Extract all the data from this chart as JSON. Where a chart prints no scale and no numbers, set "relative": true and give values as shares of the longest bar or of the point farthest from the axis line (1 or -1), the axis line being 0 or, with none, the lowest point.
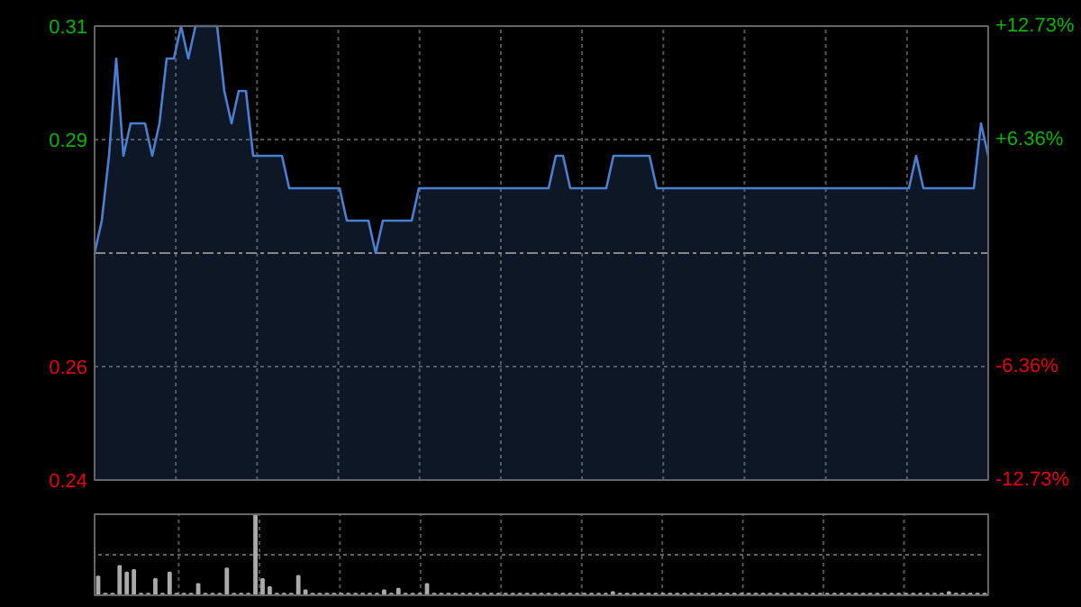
{
  "chart_data": [
    {
      "type": "area",
      "categories": [
        null,
        null,
        null,
        null,
        null,
        null,
        null,
        null,
        null,
        null,
        null,
        null,
        null,
        null,
        null,
        null,
        null,
        null,
        null,
        null,
        null,
        null,
        null,
        null,
        null,
        null,
        null,
        null,
        null,
        null,
        null,
        null,
        null,
        null,
        null,
        null,
        null,
        null,
        null,
        null,
        null,
        null,
        null,
        null,
        null,
        null,
        null,
        null,
        null,
        null,
        null,
        null,
        null,
        null,
        null,
        null,
        null,
        null,
        null,
        null,
        null,
        null,
        null,
        null,
        null,
        null,
        null,
        null,
        null,
        null,
        null,
        null,
        null,
        null,
        null,
        null,
        null,
        null,
        null,
        null,
        null,
        null,
        null,
        null,
        null,
        null,
        null,
        null,
        null,
        null,
        null,
        null,
        null,
        null,
        null,
        null,
        null,
        null,
        null,
        null,
        null,
        null,
        null,
        null,
        null,
        null,
        null,
        null,
        null,
        null,
        null,
        null,
        null,
        null,
        null,
        null,
        null,
        null,
        null,
        null,
        null,
        null,
        null,
        null,
        null
      ],
      "series": [
        {
          "color": "#4a7fd4",
          "values": [
            0.275,
            0.28,
            0.29,
            0.305,
            0.29,
            0.295,
            0.295,
            0.295,
            0.29,
            0.295,
            0.305,
            0.305,
            0.31,
            0.305,
            0.31,
            0.31,
            0.31,
            0.31,
            0.3,
            0.295,
            0.3,
            0.3,
            0.29,
            0.29,
            0.29,
            0.29,
            0.29,
            0.285,
            0.285,
            0.285,
            0.285,
            0.285,
            0.285,
            0.285,
            0.285,
            0.28,
            0.28,
            0.28,
            0.28,
            0.275,
            0.28,
            0.28,
            0.28,
            0.28,
            0.28,
            0.285,
            0.285,
            0.285,
            0.285,
            0.285,
            0.285,
            0.285,
            0.285,
            0.285,
            0.285,
            0.285,
            0.285,
            0.285,
            0.285,
            0.285,
            0.285,
            0.285,
            0.285,
            0.285,
            0.29,
            0.29,
            0.285,
            0.285,
            0.285,
            0.285,
            0.285,
            0.285,
            0.29,
            0.29,
            0.29,
            0.29,
            0.29,
            0.29,
            0.285,
            0.285,
            0.285,
            0.285,
            0.285,
            0.285,
            0.285,
            0.285,
            0.285,
            0.285,
            0.285,
            0.285,
            0.285,
            0.285,
            0.285,
            0.285,
            0.285,
            0.285,
            0.285,
            0.285,
            0.285,
            0.285,
            0.285,
            0.285,
            0.285,
            0.285,
            0.285,
            0.285,
            0.285,
            0.285,
            0.285,
            0.285,
            0.285,
            0.285,
            0.285,
            0.285,
            0.29,
            0.285,
            0.285,
            0.285,
            0.285,
            0.285,
            0.285,
            0.285,
            0.285,
            0.295,
            0.29
          ]
        }
      ],
      "ylim": [
        0.24,
        0.31
      ],
      "yticks": [
        0.31,
        {
          "value": 0.2925,
          "label": "0.29"
        },
        {
          "value": 0.2575,
          "label": "0.26"
        },
        0.24
      ],
      "y2lim": [
        -12.73,
        12.73
      ],
      "y2ticks": [
        {
          "value": 12.73,
          "label": "+12.73%"
        },
        {
          "value": 6.36,
          "label": "+6.36%"
        },
        {
          "value": -6.36,
          "label": "-6.36%"
        },
        {
          "value": -12.73,
          "label": "-12.73%"
        }
      ],
      "ref_lines": [
        {
          "axis": "y",
          "value": 0.275,
          "color": "#888888",
          "line_style": "dashed"
        }
      ],
      "grid": true
    },
    {
      "type": "bar",
      "relative": true,
      "color": "#aaaaaa",
      "grid": true,
      "ref_lines": [
        {
          "axis": "y",
          "value": 0.5,
          "color": "#666666",
          "line_style": "dotted"
        }
      ],
      "categories": [
        null,
        null,
        null,
        null,
        null,
        null,
        null,
        null,
        null,
        null,
        null,
        null,
        null,
        null,
        null,
        null,
        null,
        null,
        null,
        null,
        null,
        null,
        null,
        null,
        null,
        null,
        null,
        null,
        null,
        null,
        null,
        null,
        null,
        null,
        null,
        null,
        null,
        null,
        null,
        null,
        null,
        null,
        null,
        null,
        null,
        null,
        null,
        null,
        null,
        null,
        null,
        null,
        null,
        null,
        null,
        null,
        null,
        null,
        null,
        null,
        null,
        null,
        null,
        null,
        null,
        null,
        null,
        null,
        null,
        null,
        null,
        null,
        null,
        null,
        null,
        null,
        null,
        null,
        null,
        null,
        null,
        null,
        null,
        null,
        null,
        null,
        null,
        null,
        null,
        null,
        null,
        null,
        null,
        null,
        null,
        null,
        null,
        null,
        null,
        null,
        null,
        null,
        null,
        null,
        null,
        null,
        null,
        null,
        null,
        null,
        null,
        null,
        null,
        null,
        null,
        null,
        null,
        null,
        null,
        null,
        null,
        null,
        null,
        null,
        null
      ],
      "values": [
        0.23,
        0.02,
        0.02,
        0.36,
        0.28,
        0.31,
        0.02,
        0.02,
        0.2,
        0.02,
        0.28,
        0.02,
        0.02,
        0.02,
        0.14,
        0.02,
        0.02,
        0.02,
        0.33,
        0.02,
        0.02,
        0.02,
        1,
        0.2,
        0.1,
        0.02,
        0.02,
        0.02,
        0.24,
        0.06,
        0.02,
        0.02,
        0.02,
        0.02,
        0.02,
        0.02,
        0.02,
        0.02,
        0.02,
        0.02,
        0.06,
        0.02,
        0.08,
        0.02,
        0.02,
        0.02,
        0.14,
        0.02,
        0.02,
        0.02,
        0.02,
        0.02,
        0.02,
        0.02,
        0.02,
        0.02,
        0.02,
        0.02,
        0.02,
        0.02,
        0.02,
        0.02,
        0.02,
        0.02,
        0.02,
        0.02,
        0.02,
        0.02,
        0.02,
        0.02,
        0.02,
        0.02,
        0.04,
        0.02,
        0.02,
        0.02,
        0.02,
        0.02,
        0.02,
        0.02,
        0.02,
        0.02,
        0.02,
        0.02,
        0.02,
        0.02,
        0.02,
        0.02,
        0.02,
        0.02,
        0.02,
        0.02,
        0.02,
        0.02,
        0.02,
        0.02,
        0.02,
        0.02,
        0.02,
        0.02,
        0.02,
        0.02,
        0.02,
        0.02,
        0.02,
        0.02,
        0.02,
        0.02,
        0.02,
        0.02,
        0.02,
        0.02,
        0.02,
        0.02,
        0.02,
        0.02,
        0.02,
        0.02,
        0.02,
        0.04,
        0.02,
        0.02,
        0.02,
        0.02,
        0.02
      ]
    }
  ]
}
